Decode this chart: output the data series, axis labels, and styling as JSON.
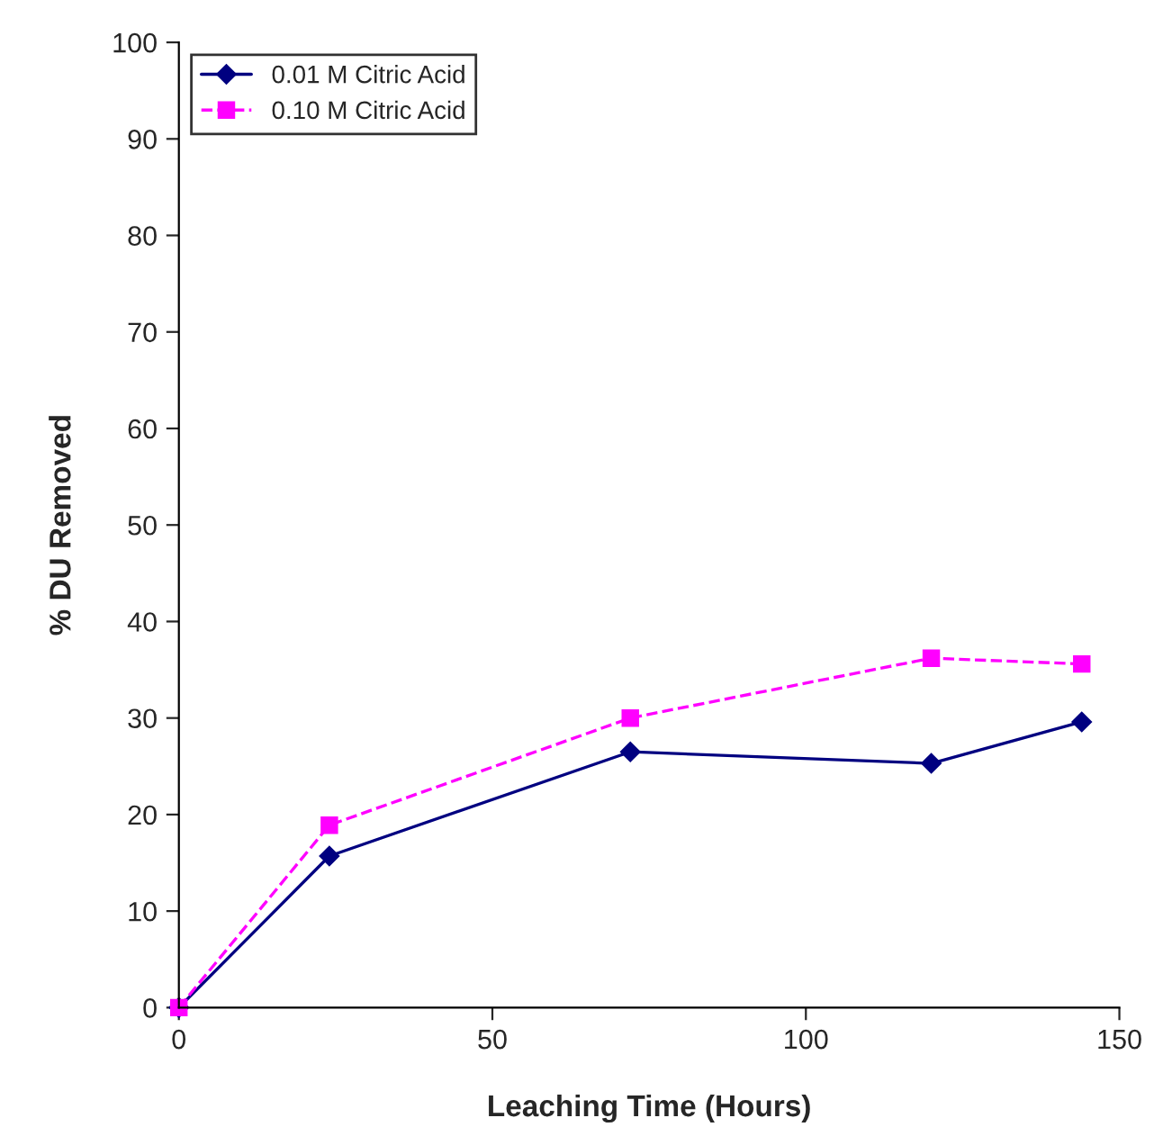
{
  "chart_data": {
    "type": "line",
    "xlabel": "Leaching Time (Hours)",
    "ylabel": "% DU Removed",
    "series": [
      {
        "name": "0.01 M Citric Acid",
        "color": "#000080",
        "x": [
          0,
          24,
          72,
          120,
          144
        ],
        "values": [
          0,
          15.7,
          26.5,
          25.3,
          29.6
        ],
        "marker": "diamond",
        "line_style": "solid"
      },
      {
        "name": "0.10 M Citric Acid",
        "color": "#ff00ff",
        "x": [
          0,
          24,
          72,
          120,
          144
        ],
        "values": [
          0,
          18.9,
          30,
          36.2,
          35.6
        ],
        "marker": "square",
        "line_style": "dashed"
      }
    ],
    "xlim": [
      0,
      150
    ],
    "xticks": [
      0,
      50,
      100,
      150
    ],
    "ylim": [
      0,
      100
    ],
    "yticks": [
      0,
      10,
      20,
      30,
      40,
      50,
      60,
      70,
      80,
      90,
      100
    ],
    "grid": false,
    "legend": "top left"
  }
}
